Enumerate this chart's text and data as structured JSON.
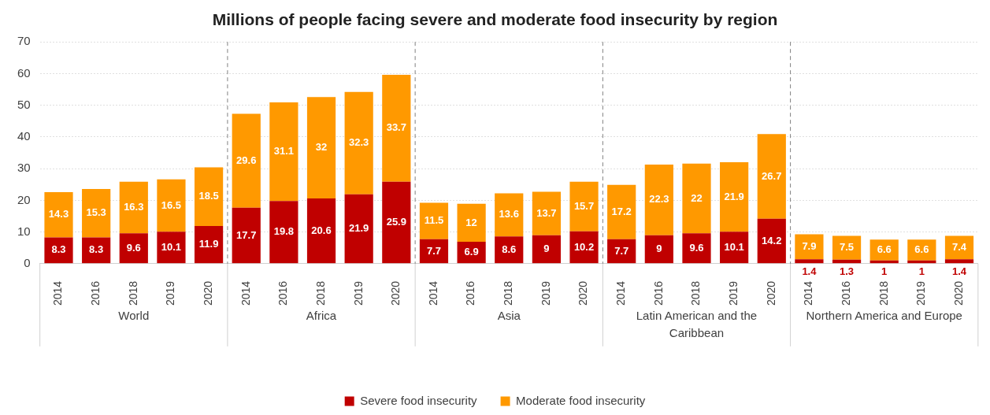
{
  "chart_data": {
    "type": "bar",
    "title": "Millions of people facing severe and moderate food insecurity by region",
    "categories": [
      "2014",
      "2016",
      "2018",
      "2019",
      "2020",
      "2014",
      "2016",
      "2018",
      "2019",
      "2020",
      "2014",
      "2016",
      "2018",
      "2019",
      "2020",
      "2014",
      "2016",
      "2018",
      "2019",
      "2020",
      "2014",
      "2016",
      "2018",
      "2019",
      "2020"
    ],
    "stacked": true,
    "series": [
      {
        "name": "Severe food insecurity",
        "color": "#c00000",
        "values": [
          8.3,
          8.3,
          9.6,
          10.1,
          11.9,
          17.7,
          19.8,
          20.6,
          21.9,
          25.9,
          7.7,
          6.9,
          8.6,
          9,
          10.2,
          7.7,
          9,
          9.6,
          10.1,
          14.2,
          1.4,
          1.3,
          1,
          1,
          1.4
        ]
      },
      {
        "name": "Moderate food insecurity",
        "color": "#ff9900",
        "values": [
          14.3,
          15.3,
          16.3,
          16.5,
          18.5,
          29.6,
          31.1,
          32,
          32.3,
          33.7,
          11.5,
          12,
          13.6,
          13.7,
          15.7,
          17.2,
          22.3,
          22,
          21.9,
          26.7,
          7.9,
          7.5,
          6.6,
          6.6,
          7.4
        ]
      }
    ],
    "ylim": [
      0,
      70
    ],
    "yticks": [
      0,
      10,
      20,
      30,
      40,
      50,
      60,
      70
    ],
    "grid": "y",
    "legend": "bottom",
    "data_labels": true,
    "annotations": [
      "World",
      "Africa",
      "Asia",
      "Latin American and the Caribbean",
      "Northern America and Europe"
    ]
  }
}
